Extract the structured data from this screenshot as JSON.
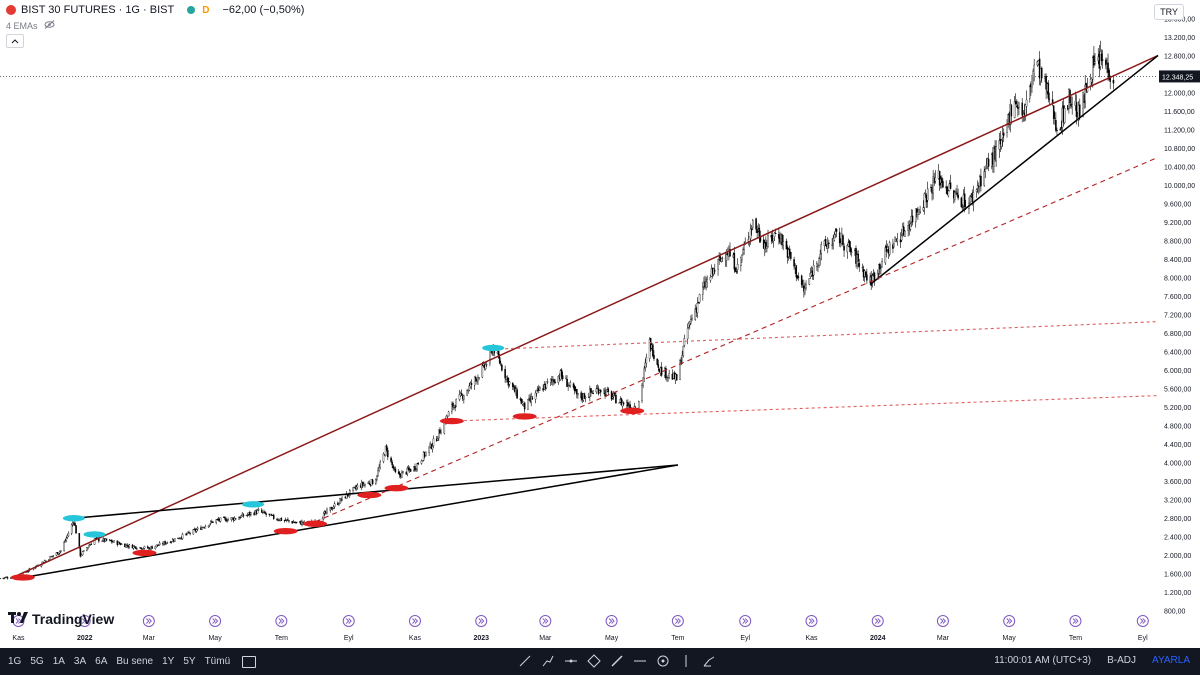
{
  "legend": {
    "symbol": "BIST 30 FUTURES · 1G · BIST",
    "badge": "D",
    "change": "−62,00 (−0,50%)",
    "ema_label": "4 EMAs",
    "currency": "TRY"
  },
  "chart_data": {
    "type": "candlestick",
    "title": "BIST 30 FUTURES · 1G · BIST",
    "last_price": 12348.25,
    "last_price_label": "12.348,25",
    "y_ticks": [
      "800,00",
      "1.200,00",
      "1.600,00",
      "2.000,00",
      "2.400,00",
      "2.800,00",
      "3.200,00",
      "3.600,00",
      "4.000,00",
      "4.400,00",
      "4.800,00",
      "5.200,00",
      "5.600,00",
      "6.000,00",
      "6.400,00",
      "6.800,00",
      "7.200,00",
      "7.600,00",
      "8.000,00",
      "8.400,00",
      "8.800,00",
      "9.200,00",
      "9.600,00",
      "10.000,00",
      "10.400,00",
      "10.800,00",
      "11.200,00",
      "11.600,00",
      "12.000,00",
      "12.400,00",
      "12.800,00",
      "13.200,00",
      "13.600,00"
    ],
    "y_tick_values": [
      800,
      1200,
      1600,
      2000,
      2400,
      2800,
      3200,
      3600,
      4000,
      4400,
      4800,
      5200,
      5600,
      6000,
      6400,
      6800,
      7200,
      7600,
      8000,
      8400,
      8800,
      9200,
      9600,
      10000,
      10400,
      10800,
      11200,
      11600,
      12000,
      12400,
      12800,
      13200,
      13600
    ],
    "ylim": [
      600,
      14000
    ],
    "xlim": [
      "2021-10-15",
      "2024-09-15"
    ],
    "x_ticks": [
      {
        "label": "Kas",
        "date": "2021-11-01"
      },
      {
        "label": "2022",
        "date": "2022-01-01"
      },
      {
        "label": "Mar",
        "date": "2022-03-01"
      },
      {
        "label": "May",
        "date": "2022-05-01"
      },
      {
        "label": "Tem",
        "date": "2022-07-01"
      },
      {
        "label": "Eyl",
        "date": "2022-09-01"
      },
      {
        "label": "Kas",
        "date": "2022-11-01"
      },
      {
        "label": "2023",
        "date": "2023-01-01"
      },
      {
        "label": "Mar",
        "date": "2023-03-01"
      },
      {
        "label": "May",
        "date": "2023-05-01"
      },
      {
        "label": "Tem",
        "date": "2023-07-01"
      },
      {
        "label": "Eyl",
        "date": "2023-09-01"
      },
      {
        "label": "Kas",
        "date": "2023-11-01"
      },
      {
        "label": "2024",
        "date": "2024-01-01"
      },
      {
        "label": "Mar",
        "date": "2024-03-01"
      },
      {
        "label": "May",
        "date": "2024-05-01"
      },
      {
        "label": "Tem",
        "date": "2024-07-01"
      },
      {
        "label": "Eyl",
        "date": "2024-09-01"
      }
    ],
    "price_path": [
      [
        "2021-10-15",
        1500
      ],
      [
        "2021-11-01",
        1550
      ],
      [
        "2021-11-20",
        1800
      ],
      [
        "2021-12-10",
        2100
      ],
      [
        "2021-12-22",
        2750
      ],
      [
        "2021-12-28",
        2000
      ],
      [
        "2022-01-10",
        2350
      ],
      [
        "2022-01-25",
        2300
      ],
      [
        "2022-02-10",
        2200
      ],
      [
        "2022-03-01",
        2150
      ],
      [
        "2022-03-20",
        2300
      ],
      [
        "2022-04-10",
        2500
      ],
      [
        "2022-05-01",
        2750
      ],
      [
        "2022-05-20",
        2800
      ],
      [
        "2022-06-10",
        2950
      ],
      [
        "2022-06-25",
        2800
      ],
      [
        "2022-07-15",
        2700
      ],
      [
        "2022-08-01",
        2700
      ],
      [
        "2022-08-20",
        3100
      ],
      [
        "2022-09-10",
        3500
      ],
      [
        "2022-09-25",
        3600
      ],
      [
        "2022-10-05",
        4300
      ],
      [
        "2022-10-15",
        3700
      ],
      [
        "2022-11-01",
        3900
      ],
      [
        "2022-11-20",
        4500
      ],
      [
        "2022-12-05",
        5200
      ],
      [
        "2022-12-20",
        5600
      ],
      [
        "2023-01-05",
        6100
      ],
      [
        "2023-01-12",
        6500
      ],
      [
        "2023-01-25",
        5800
      ],
      [
        "2023-02-10",
        5200
      ],
      [
        "2023-02-25",
        5600
      ],
      [
        "2023-03-15",
        5900
      ],
      [
        "2023-04-01",
        5400
      ],
      [
        "2023-04-20",
        5600
      ],
      [
        "2023-05-10",
        5300
      ],
      [
        "2023-05-25",
        5200
      ],
      [
        "2023-06-05",
        6600
      ],
      [
        "2023-06-15",
        6000
      ],
      [
        "2023-06-30",
        5800
      ],
      [
        "2023-07-10",
        6900
      ],
      [
        "2023-07-25",
        7800
      ],
      [
        "2023-08-15",
        8600
      ],
      [
        "2023-08-25",
        8200
      ],
      [
        "2023-09-08",
        9200
      ],
      [
        "2023-09-20",
        8700
      ],
      [
        "2023-10-01",
        9000
      ],
      [
        "2023-10-15",
        8300
      ],
      [
        "2023-10-25",
        7700
      ],
      [
        "2023-11-10",
        8600
      ],
      [
        "2023-11-25",
        8900
      ],
      [
        "2023-12-10",
        8500
      ],
      [
        "2023-12-25",
        7900
      ],
      [
        "2024-01-10",
        8600
      ],
      [
        "2024-01-25",
        9000
      ],
      [
        "2024-02-10",
        9600
      ],
      [
        "2024-02-25",
        10200
      ],
      [
        "2024-03-10",
        9800
      ],
      [
        "2024-03-25",
        9600
      ],
      [
        "2024-04-10",
        10400
      ],
      [
        "2024-04-25",
        10900
      ],
      [
        "2024-05-05",
        11900
      ],
      [
        "2024-05-15",
        11500
      ],
      [
        "2024-05-25",
        12700
      ],
      [
        "2024-06-05",
        12000
      ],
      [
        "2024-06-15",
        11200
      ],
      [
        "2024-06-25",
        11900
      ],
      [
        "2024-07-05",
        11500
      ],
      [
        "2024-07-15",
        12500
      ],
      [
        "2024-07-25",
        12700
      ],
      [
        "2024-08-05",
        12348
      ]
    ],
    "trendlines": [
      {
        "style": "solid",
        "color": "#8b1a1a",
        "from": [
          "2021-10-25",
          1500
        ],
        "to": [
          "2024-09-15",
          12800
        ]
      },
      {
        "style": "solid",
        "color": "#000000",
        "from": [
          "2021-11-01",
          1500
        ],
        "to": [
          "2023-07-01",
          3950
        ]
      },
      {
        "style": "solid",
        "color": "#000000",
        "from": [
          "2021-12-22",
          2800
        ],
        "to": [
          "2023-07-01",
          3950
        ]
      },
      {
        "style": "solid",
        "color": "#000000",
        "from": [
          "2023-12-25",
          7850
        ],
        "to": [
          "2024-09-15",
          12800
        ]
      },
      {
        "style": "dashed",
        "color": "#b22222",
        "from": [
          "2022-07-25",
          2650
        ],
        "to": [
          "2024-09-15",
          10600
        ]
      },
      {
        "style": "dotted",
        "color": "#e06060",
        "from": [
          "2023-01-12",
          6450
        ],
        "to": [
          "2024-09-15",
          7050
        ]
      },
      {
        "style": "dotted",
        "color": "#e06060",
        "from": [
          "2022-12-05",
          4900
        ],
        "to": [
          "2024-09-15",
          5450
        ]
      }
    ],
    "markers_low": [
      [
        "2021-11-05",
        1520
      ],
      [
        "2022-02-25",
        2050
      ],
      [
        "2022-07-05",
        2520
      ],
      [
        "2022-08-01",
        2680
      ],
      [
        "2022-09-20",
        3300
      ],
      [
        "2022-10-15",
        3450
      ],
      [
        "2022-12-05",
        4900
      ],
      [
        "2023-02-10",
        5000
      ],
      [
        "2023-05-20",
        5120
      ]
    ],
    "markers_high": [
      [
        "2021-12-22",
        2800
      ],
      [
        "2022-01-10",
        2450
      ],
      [
        "2022-06-05",
        3100
      ],
      [
        "2023-01-12",
        6480
      ]
    ],
    "grid": false
  },
  "logo": {
    "text": "TradingView"
  },
  "bottombar": {
    "timeframes": [
      "1G",
      "5G",
      "1A",
      "3A",
      "6A",
      "Bu sene",
      "1Y",
      "5Y",
      "Tümü"
    ],
    "time": "11:00:01 AM (UTC+3)",
    "adj": "B-ADJ",
    "settings": "AYARLA"
  }
}
